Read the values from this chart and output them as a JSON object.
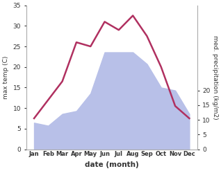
{
  "months": [
    "Jan",
    "Feb",
    "Mar",
    "Apr",
    "May",
    "Jun",
    "Jul",
    "Aug",
    "Sep",
    "Oct",
    "Nov",
    "Dec"
  ],
  "temp": [
    7.5,
    12.0,
    16.5,
    26.0,
    25.0,
    31.0,
    29.0,
    32.5,
    27.5,
    20.0,
    10.5,
    7.5
  ],
  "precip": [
    9,
    8,
    12,
    13,
    19,
    33,
    33,
    33,
    29,
    21,
    20,
    12
  ],
  "temp_color": "#b03060",
  "precip_fill_color": "#b8c0e8",
  "temp_ylim": [
    0,
    35
  ],
  "precip_ylim": [
    0,
    49
  ],
  "right_yticks": [
    0,
    5,
    10,
    15,
    20
  ],
  "temp_yticks": [
    0,
    5,
    10,
    15,
    20,
    25,
    30,
    35
  ],
  "ylabel_left": "max temp (C)",
  "ylabel_right": "med. precipitation (kg/m2)",
  "xlabel": "date (month)",
  "background_color": "#ffffff"
}
